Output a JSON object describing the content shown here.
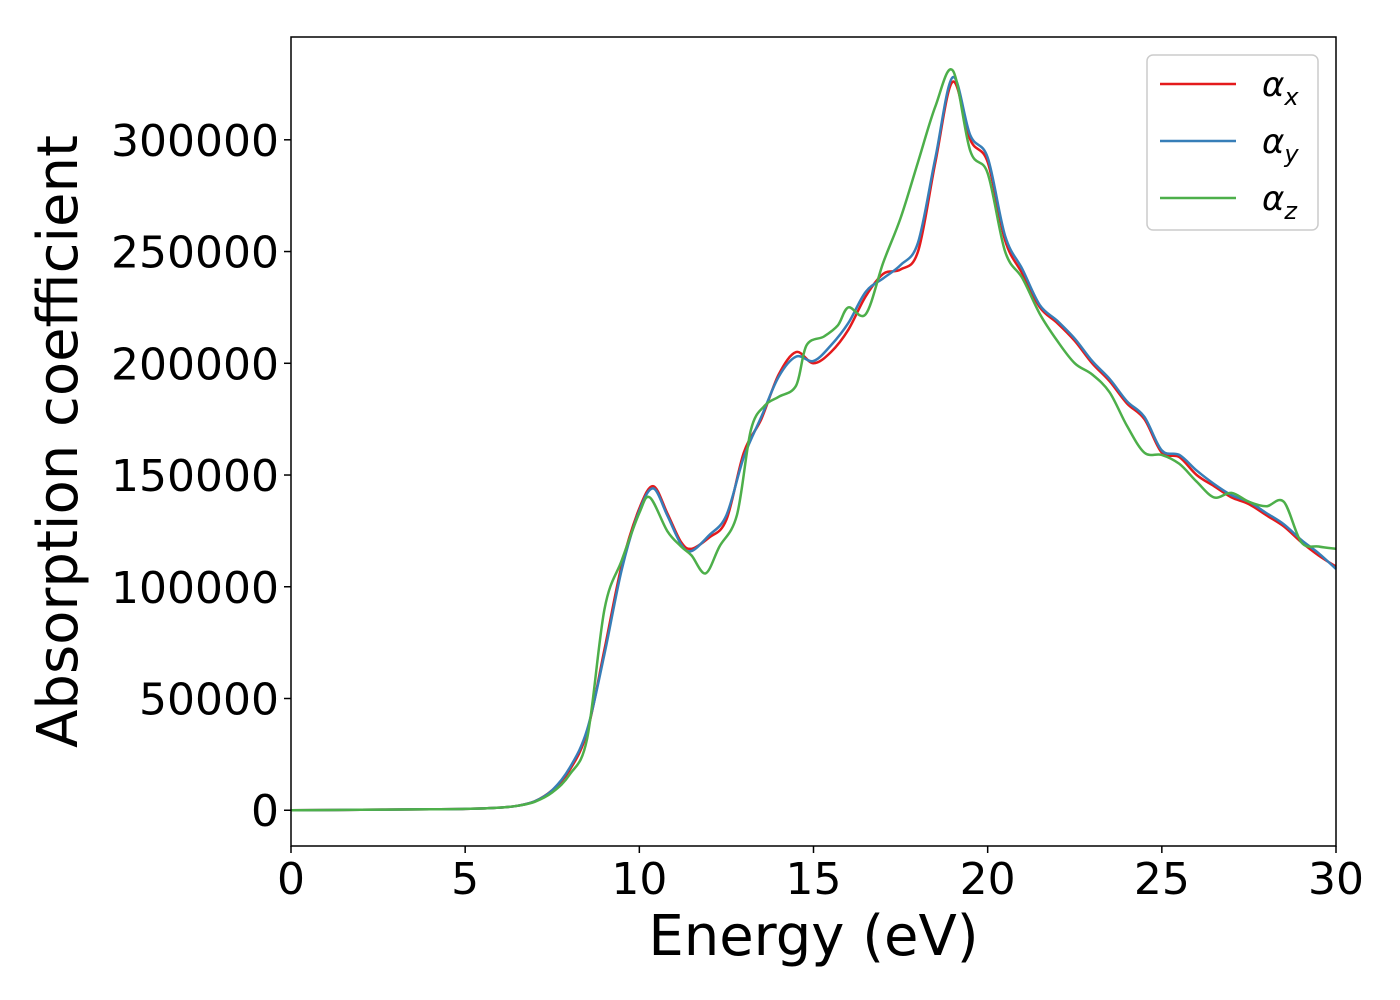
{
  "chart_data": {
    "type": "line",
    "title": "",
    "xlabel": "Energy (eV)",
    "ylabel": "Absorption coefficient",
    "xlim": [
      0,
      30
    ],
    "ylim": [
      -16000,
      346000
    ],
    "x_ticks": [
      0,
      5,
      10,
      15,
      20,
      25,
      30
    ],
    "y_ticks": [
      0,
      50000,
      100000,
      150000,
      200000,
      250000,
      300000
    ],
    "grid": false,
    "legend_position": "top-right",
    "series": [
      {
        "name": "αx",
        "legend_base": "α",
        "legend_sub": "x",
        "color": "#e41a1c",
        "points": [
          [
            0,
            0
          ],
          [
            2,
            200
          ],
          [
            4,
            400
          ],
          [
            5,
            600
          ],
          [
            6,
            1200
          ],
          [
            6.5,
            2000
          ],
          [
            7,
            4000
          ],
          [
            7.5,
            9000
          ],
          [
            8,
            18000
          ],
          [
            8.5,
            35000
          ],
          [
            9,
            72000
          ],
          [
            9.5,
            110000
          ],
          [
            10,
            135000
          ],
          [
            10.4,
            145000
          ],
          [
            10.8,
            133000
          ],
          [
            11.2,
            120000
          ],
          [
            11.5,
            117000
          ],
          [
            12,
            122000
          ],
          [
            12.5,
            130000
          ],
          [
            13,
            160000
          ],
          [
            13.5,
            175000
          ],
          [
            14,
            195000
          ],
          [
            14.5,
            205000
          ],
          [
            15,
            200000
          ],
          [
            15.5,
            205000
          ],
          [
            16,
            215000
          ],
          [
            16.5,
            230000
          ],
          [
            17,
            240000
          ],
          [
            17.5,
            242000
          ],
          [
            18,
            250000
          ],
          [
            18.5,
            290000
          ],
          [
            19,
            326000
          ],
          [
            19.5,
            300000
          ],
          [
            20,
            290000
          ],
          [
            20.5,
            255000
          ],
          [
            21,
            240000
          ],
          [
            21.5,
            225000
          ],
          [
            22,
            218000
          ],
          [
            22.5,
            210000
          ],
          [
            23,
            200000
          ],
          [
            23.5,
            192000
          ],
          [
            24,
            182000
          ],
          [
            24.5,
            175000
          ],
          [
            25,
            160000
          ],
          [
            25.5,
            158000
          ],
          [
            26,
            150000
          ],
          [
            26.5,
            145000
          ],
          [
            27,
            140000
          ],
          [
            27.5,
            137000
          ],
          [
            28,
            132000
          ],
          [
            28.5,
            127000
          ],
          [
            29,
            120000
          ],
          [
            29.5,
            114000
          ],
          [
            30,
            109000
          ]
        ]
      },
      {
        "name": "αy",
        "legend_base": "α",
        "legend_sub": "y",
        "color": "#377eb8",
        "points": [
          [
            0,
            0
          ],
          [
            2,
            200
          ],
          [
            4,
            400
          ],
          [
            5,
            600
          ],
          [
            6,
            1200
          ],
          [
            6.5,
            2000
          ],
          [
            7,
            4000
          ],
          [
            7.5,
            9000
          ],
          [
            8,
            19000
          ],
          [
            8.5,
            36000
          ],
          [
            9,
            70000
          ],
          [
            9.5,
            108000
          ],
          [
            10,
            134000
          ],
          [
            10.4,
            144000
          ],
          [
            10.8,
            132000
          ],
          [
            11.2,
            119000
          ],
          [
            11.5,
            116000
          ],
          [
            12,
            123000
          ],
          [
            12.5,
            132000
          ],
          [
            13,
            158000
          ],
          [
            13.5,
            176000
          ],
          [
            14,
            194000
          ],
          [
            14.5,
            203000
          ],
          [
            15,
            201000
          ],
          [
            15.5,
            208000
          ],
          [
            16,
            218000
          ],
          [
            16.5,
            232000
          ],
          [
            17,
            238000
          ],
          [
            17.5,
            244000
          ],
          [
            18,
            254000
          ],
          [
            18.5,
            292000
          ],
          [
            19,
            328000
          ],
          [
            19.5,
            302000
          ],
          [
            20,
            292000
          ],
          [
            20.5,
            257000
          ],
          [
            21,
            242000
          ],
          [
            21.5,
            226000
          ],
          [
            22,
            219000
          ],
          [
            22.5,
            211000
          ],
          [
            23,
            201000
          ],
          [
            23.5,
            193000
          ],
          [
            24,
            183000
          ],
          [
            24.5,
            176000
          ],
          [
            25,
            161000
          ],
          [
            25.5,
            159000
          ],
          [
            26,
            152000
          ],
          [
            26.5,
            146000
          ],
          [
            27,
            141000
          ],
          [
            27.5,
            138000
          ],
          [
            28,
            133000
          ],
          [
            28.5,
            128000
          ],
          [
            29,
            121000
          ],
          [
            29.5,
            115000
          ],
          [
            30,
            108000
          ]
        ]
      },
      {
        "name": "αz",
        "legend_base": "α",
        "legend_sub": "z",
        "color": "#4daf4a",
        "points": [
          [
            0,
            0
          ],
          [
            2,
            200
          ],
          [
            4,
            400
          ],
          [
            5,
            600
          ],
          [
            6,
            1200
          ],
          [
            6.5,
            2000
          ],
          [
            7,
            3800
          ],
          [
            7.5,
            8000
          ],
          [
            8,
            16000
          ],
          [
            8.5,
            32000
          ],
          [
            9,
            90000
          ],
          [
            9.5,
            112000
          ],
          [
            10,
            133000
          ],
          [
            10.3,
            140000
          ],
          [
            10.8,
            125000
          ],
          [
            11.2,
            118000
          ],
          [
            11.5,
            114000
          ],
          [
            11.9,
            106000
          ],
          [
            12.3,
            118000
          ],
          [
            12.8,
            132000
          ],
          [
            13.2,
            170000
          ],
          [
            13.6,
            181000
          ],
          [
            14,
            185000
          ],
          [
            14.5,
            190000
          ],
          [
            14.8,
            208000
          ],
          [
            15.3,
            212000
          ],
          [
            15.7,
            217000
          ],
          [
            16,
            225000
          ],
          [
            16.5,
            222000
          ],
          [
            17,
            245000
          ],
          [
            17.5,
            265000
          ],
          [
            18,
            290000
          ],
          [
            18.5,
            315000
          ],
          [
            19,
            331000
          ],
          [
            19.5,
            295000
          ],
          [
            20,
            285000
          ],
          [
            20.5,
            250000
          ],
          [
            21,
            238000
          ],
          [
            21.5,
            222000
          ],
          [
            22,
            210000
          ],
          [
            22.5,
            200000
          ],
          [
            23,
            195000
          ],
          [
            23.5,
            187000
          ],
          [
            24,
            172000
          ],
          [
            24.5,
            160000
          ],
          [
            25,
            159000
          ],
          [
            25.5,
            155000
          ],
          [
            26,
            147000
          ],
          [
            26.5,
            140000
          ],
          [
            27,
            142000
          ],
          [
            27.5,
            138000
          ],
          [
            28,
            136000
          ],
          [
            28.5,
            138000
          ],
          [
            29,
            120000
          ],
          [
            29.5,
            118000
          ],
          [
            30,
            117000
          ]
        ]
      }
    ]
  }
}
